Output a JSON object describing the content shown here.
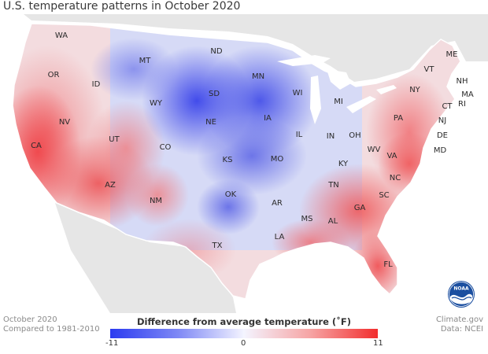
{
  "title": "U.S. temperature patterns in October 2020",
  "footer_left": {
    "line1": "October 2020",
    "line2": "Compared to 1981-2010"
  },
  "footer_right": {
    "line1": "Climate.gov",
    "line2": "Data: NCEI"
  },
  "legend": {
    "title": "Difference from average temperature (˚F)",
    "min_label": "-11",
    "mid_label": "0",
    "max_label": "11",
    "colors": {
      "cold": "#2b3bf0",
      "neutral": "#f4f4ff",
      "warm": "#f22e2e"
    }
  },
  "logo": {
    "text": "NOAA"
  },
  "states": [
    {
      "abbr": "WA",
      "anomaly": 2
    },
    {
      "abbr": "OR",
      "anomaly": 5
    },
    {
      "abbr": "CA",
      "anomaly": 9
    },
    {
      "abbr": "ID",
      "anomaly": 3
    },
    {
      "abbr": "NV",
      "anomaly": 6
    },
    {
      "abbr": "MT",
      "anomaly": -3
    },
    {
      "abbr": "WY",
      "anomaly": -1
    },
    {
      "abbr": "UT",
      "anomaly": 5
    },
    {
      "abbr": "AZ",
      "anomaly": 7
    },
    {
      "abbr": "CO",
      "anomaly": 2
    },
    {
      "abbr": "NM",
      "anomaly": 4
    },
    {
      "abbr": "ND",
      "anomaly": -8
    },
    {
      "abbr": "SD",
      "anomaly": -9
    },
    {
      "abbr": "NE",
      "anomaly": -5
    },
    {
      "abbr": "KS",
      "anomaly": -4
    },
    {
      "abbr": "OK",
      "anomaly": -6
    },
    {
      "abbr": "TX",
      "anomaly": 1
    },
    {
      "abbr": "MN",
      "anomaly": -9
    },
    {
      "abbr": "IA",
      "anomaly": -6
    },
    {
      "abbr": "MO",
      "anomaly": -4
    },
    {
      "abbr": "AR",
      "anomaly": -2
    },
    {
      "abbr": "LA",
      "anomaly": 1
    },
    {
      "abbr": "WI",
      "anomaly": -6
    },
    {
      "abbr": "IL",
      "anomaly": -3
    },
    {
      "abbr": "MI",
      "anomaly": -3
    },
    {
      "abbr": "IN",
      "anomaly": -1
    },
    {
      "abbr": "OH",
      "anomaly": 0
    },
    {
      "abbr": "KY",
      "anomaly": 1
    },
    {
      "abbr": "TN",
      "anomaly": 3
    },
    {
      "abbr": "MS",
      "anomaly": 2
    },
    {
      "abbr": "AL",
      "anomaly": 4
    },
    {
      "abbr": "GA",
      "anomaly": 5
    },
    {
      "abbr": "FL",
      "anomaly": 6
    },
    {
      "abbr": "SC",
      "anomaly": 5
    },
    {
      "abbr": "NC",
      "anomaly": 4
    },
    {
      "abbr": "VA",
      "anomaly": 4
    },
    {
      "abbr": "WV",
      "anomaly": 3
    },
    {
      "abbr": "PA",
      "anomaly": 2
    },
    {
      "abbr": "NY",
      "anomaly": 2
    },
    {
      "abbr": "VT",
      "anomaly": 3
    },
    {
      "abbr": "NH",
      "anomaly": 3
    },
    {
      "abbr": "ME",
      "anomaly": 1
    },
    {
      "abbr": "MA",
      "anomaly": 4
    },
    {
      "abbr": "CT",
      "anomaly": 4
    },
    {
      "abbr": "RI",
      "anomaly": 4
    },
    {
      "abbr": "NJ",
      "anomaly": 5
    },
    {
      "abbr": "DE",
      "anomaly": 5
    },
    {
      "abbr": "MD",
      "anomaly": 5
    }
  ]
}
